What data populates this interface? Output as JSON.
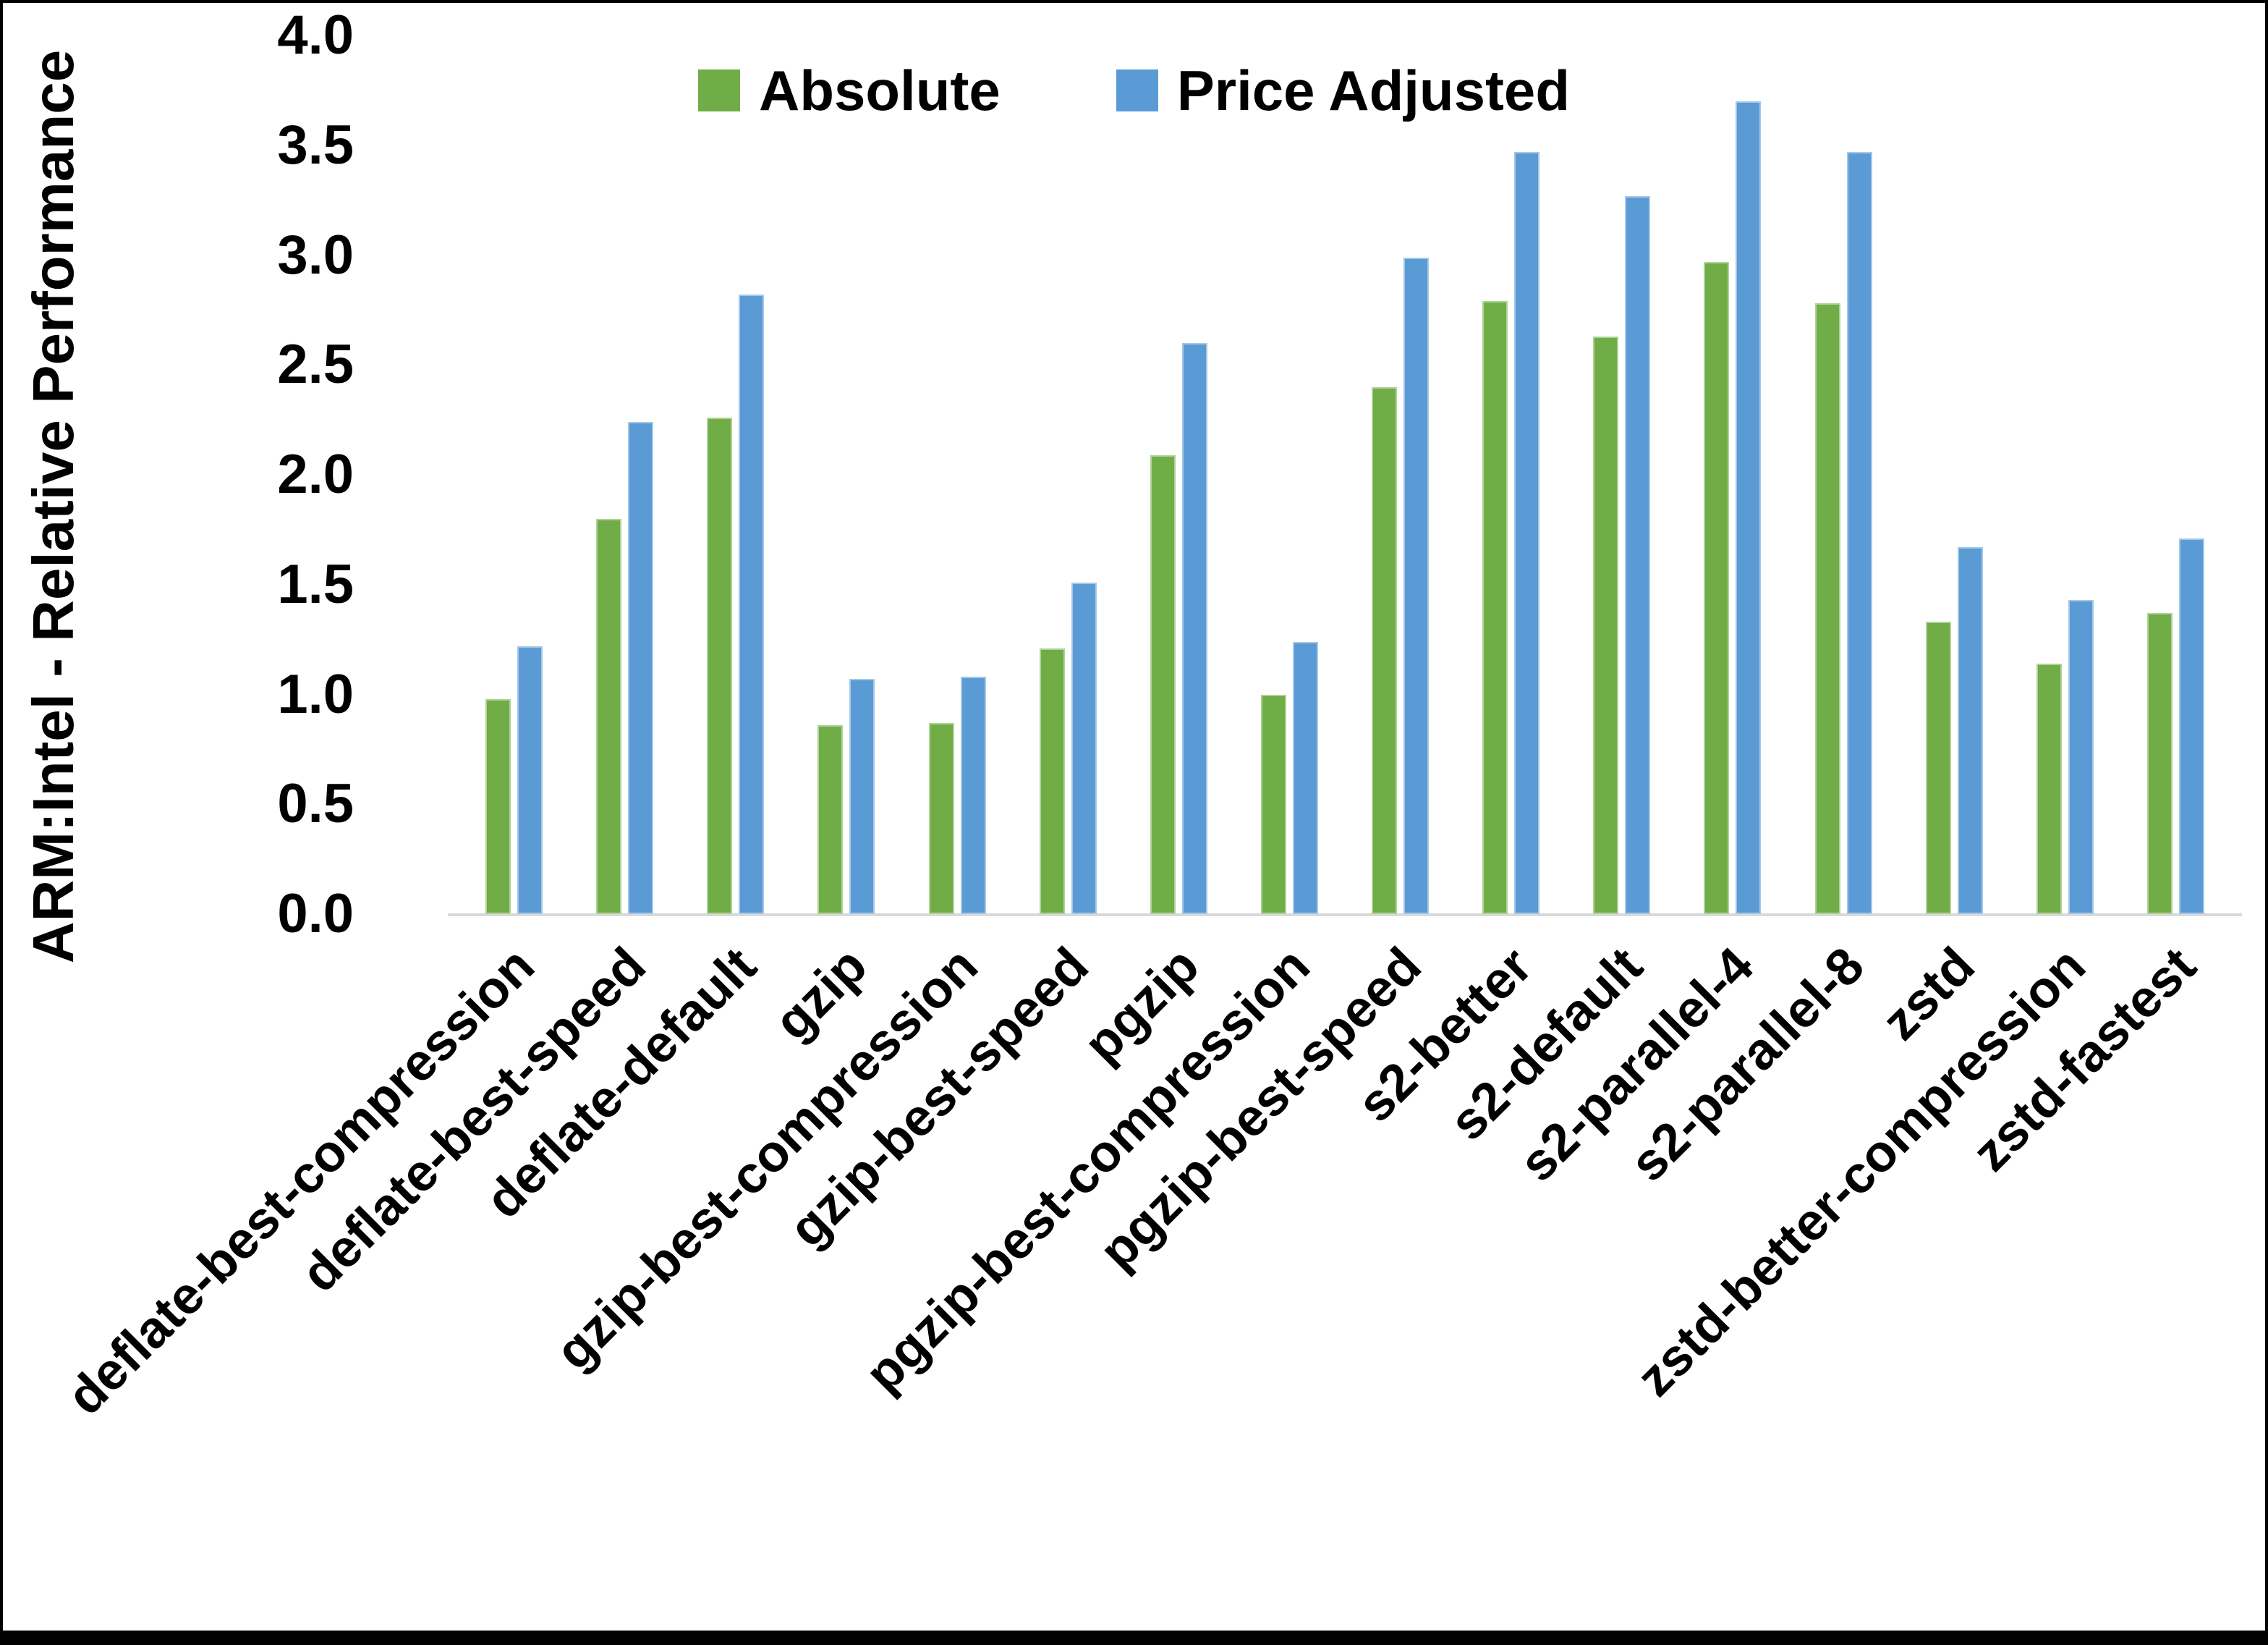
{
  "chart_data": {
    "type": "bar",
    "title": "",
    "xlabel": "",
    "ylabel": "ARM:Intel - Relative Performance",
    "ylim": [
      0.0,
      4.0
    ],
    "ytick_step": 0.5,
    "ytick_labels": [
      "0.0",
      "0.5",
      "1.0",
      "1.5",
      "2.0",
      "2.5",
      "3.0",
      "3.5",
      "4.0"
    ],
    "grid": false,
    "legend_position": "top-center",
    "categories": [
      "deflate-best-compression",
      "deflate-best-speed",
      "deflate-default",
      "gzip",
      "gzip-best-compression",
      "gzip-best-speed",
      "pgzip",
      "pgzip-best-compression",
      "pgzip-best-speed",
      "s2-better",
      "s2-default",
      "s2-parallel-4",
      "s2-parallel-8",
      "zstd",
      "zstd-better-compression",
      "zstd-fastest"
    ],
    "series": [
      {
        "name": "Absolute",
        "color": "#70AD47",
        "values": [
          0.98,
          1.8,
          2.26,
          0.86,
          0.87,
          1.21,
          2.09,
          1.0,
          2.4,
          2.79,
          2.63,
          2.97,
          2.78,
          1.33,
          1.14,
          1.37
        ]
      },
      {
        "name": "Price Adjusted",
        "color": "#5B9BD5",
        "values": [
          1.22,
          2.24,
          2.82,
          1.07,
          1.08,
          1.51,
          2.6,
          1.24,
          2.99,
          3.47,
          3.27,
          3.7,
          3.47,
          1.67,
          1.43,
          1.71
        ]
      }
    ],
    "colors": {
      "axis_line": "#d9d9d9",
      "text": "#000000",
      "background": "#ffffff",
      "border": "#000000"
    }
  }
}
